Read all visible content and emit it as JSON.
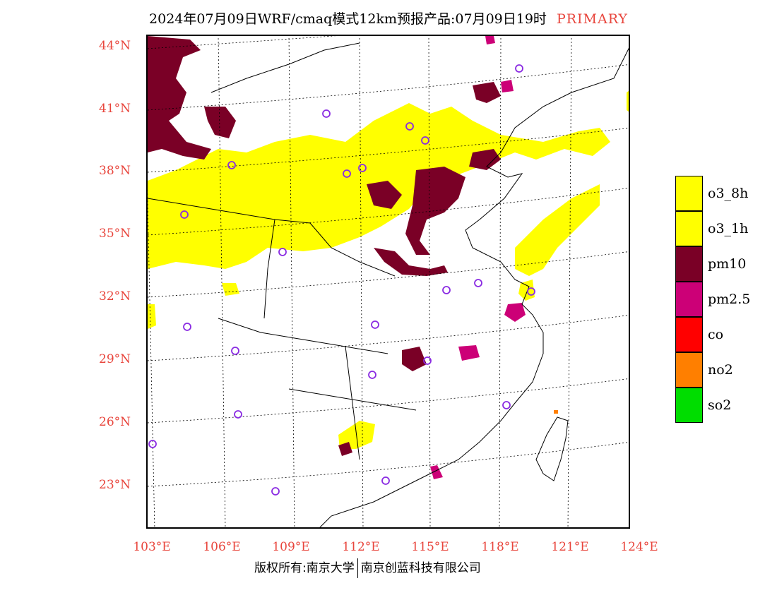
{
  "title": {
    "main": "2024年07月09日WRF/cmaq模式12km预报产品:07月09日19时",
    "tag": "PRIMARY"
  },
  "axes": {
    "lat_labels": [
      "44°N",
      "41°N",
      "38°N",
      "35°N",
      "32°N",
      "29°N",
      "26°N",
      "23°N"
    ],
    "lon_labels": [
      "103°E",
      "106°E",
      "109°E",
      "112°E",
      "115°E",
      "118°E",
      "121°E",
      "124°E"
    ]
  },
  "legend": [
    {
      "label": "o3_8h",
      "color": "#ffff00"
    },
    {
      "label": "o3_1h",
      "color": "#ffff00"
    },
    {
      "label": "pm10",
      "color": "#7a0026"
    },
    {
      "label": "pm2.5",
      "color": "#cc0077"
    },
    {
      "label": "co",
      "color": "#ff0000"
    },
    {
      "label": "no2",
      "color": "#ff7f00"
    },
    {
      "label": "so2",
      "color": "#00dd00"
    }
  ],
  "footer": {
    "left": "版权所有:南京大学",
    "right": "南京创蓝科技有限公司"
  }
}
